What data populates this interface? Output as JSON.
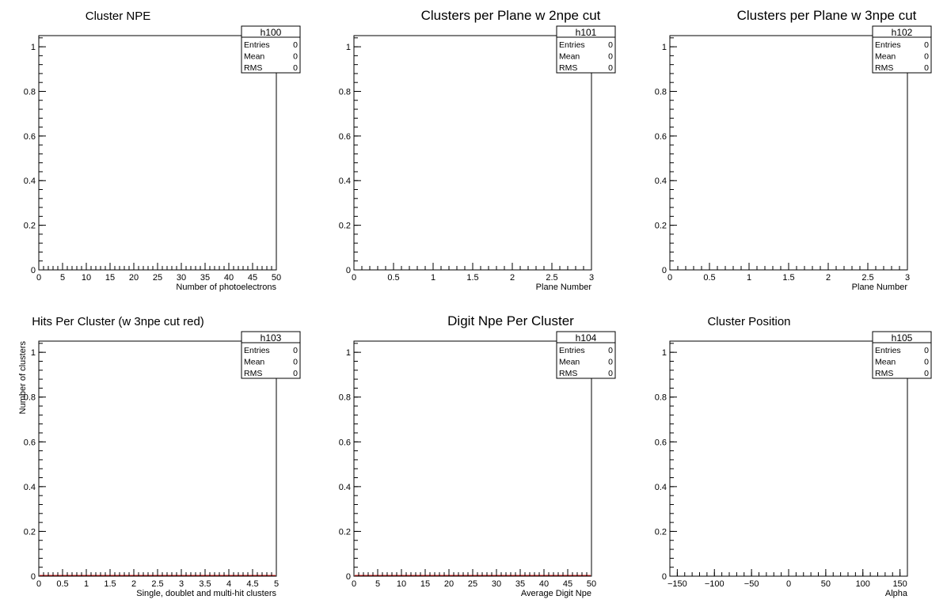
{
  "chart_data": [
    {
      "type": "bar",
      "histogram": "h100",
      "title": "Cluster NPE",
      "xlabel": "Number of photoelectrons",
      "ylabel": "",
      "xlim": [
        0,
        50
      ],
      "ylim": [
        0,
        1.05
      ],
      "xticks": [
        "0",
        "5",
        "10",
        "15",
        "20",
        "25",
        "30",
        "35",
        "40",
        "45",
        "50"
      ],
      "yticks": [
        "0",
        "0.2",
        "0.4",
        "0.6",
        "0.8",
        "1"
      ],
      "stats": {
        "name": "h100",
        "rows": [
          {
            "label": "Entries",
            "value": "0"
          },
          {
            "label": "Mean",
            "value": "0"
          },
          {
            "label": "RMS",
            "value": "0"
          }
        ]
      },
      "values": []
    },
    {
      "type": "bar",
      "histogram": "h101",
      "title": "Clusters per Plane w 2npe cut",
      "xlabel": "Plane Number",
      "ylabel": "",
      "xlim": [
        0,
        3
      ],
      "ylim": [
        0,
        1.05
      ],
      "xticks": [
        "0",
        "0.5",
        "1",
        "1.5",
        "2",
        "2.5",
        "3"
      ],
      "yticks": [
        "0",
        "0.2",
        "0.4",
        "0.6",
        "0.8",
        "1"
      ],
      "stats": {
        "name": "h101",
        "rows": [
          {
            "label": "Entries",
            "value": "0"
          },
          {
            "label": "Mean",
            "value": "0"
          },
          {
            "label": "RMS",
            "value": "0"
          }
        ]
      },
      "values": []
    },
    {
      "type": "bar",
      "histogram": "h102",
      "title": "Clusters per Plane w 3npe cut",
      "xlabel": "Plane Number",
      "ylabel": "",
      "xlim": [
        0,
        3
      ],
      "ylim": [
        0,
        1.05
      ],
      "xticks": [
        "0",
        "0.5",
        "1",
        "1.5",
        "2",
        "2.5",
        "3"
      ],
      "yticks": [
        "0",
        "0.2",
        "0.4",
        "0.6",
        "0.8",
        "1"
      ],
      "stats": {
        "name": "h102",
        "rows": [
          {
            "label": "Entries",
            "value": "0"
          },
          {
            "label": "Mean",
            "value": "0"
          },
          {
            "label": "RMS",
            "value": "0"
          }
        ]
      },
      "values": []
    },
    {
      "type": "bar",
      "histogram": "h103",
      "title": "Hits Per Cluster (w 3npe cut red)",
      "xlabel": "Single, doublet and multi-hit clusters",
      "ylabel": "Number of clusters",
      "xlim": [
        0,
        5
      ],
      "ylim": [
        0,
        1.05
      ],
      "xticks": [
        "0",
        "0.5",
        "1",
        "1.5",
        "2",
        "2.5",
        "3",
        "3.5",
        "4",
        "4.5",
        "5"
      ],
      "yticks": [
        "0",
        "0.2",
        "0.4",
        "0.6",
        "0.8",
        "1"
      ],
      "stats": {
        "name": "h103",
        "rows": [
          {
            "label": "Entries",
            "value": "0"
          },
          {
            "label": "Mean",
            "value": "0"
          },
          {
            "label": "RMS",
            "value": "0"
          }
        ]
      },
      "series_color": "#e02020",
      "values": []
    },
    {
      "type": "bar",
      "histogram": "h104",
      "title": "Digit Npe Per Cluster",
      "xlabel": "Average Digit Npe",
      "ylabel": "",
      "xlim": [
        0,
        50
      ],
      "ylim": [
        0,
        1.05
      ],
      "xticks": [
        "0",
        "5",
        "10",
        "15",
        "20",
        "25",
        "30",
        "35",
        "40",
        "45",
        "50"
      ],
      "yticks": [
        "0",
        "0.2",
        "0.4",
        "0.6",
        "0.8",
        "1"
      ],
      "stats": {
        "name": "h104",
        "rows": [
          {
            "label": "Entries",
            "value": "0"
          },
          {
            "label": "Mean",
            "value": "0"
          },
          {
            "label": "RMS",
            "value": "0"
          }
        ]
      },
      "series_color": "#e02020",
      "values": []
    },
    {
      "type": "bar",
      "histogram": "h105",
      "title": "Cluster Position",
      "xlabel": "Alpha",
      "ylabel": "",
      "xlim": [
        -160,
        160
      ],
      "ylim": [
        0,
        1.05
      ],
      "xticks": [
        "−150",
        "−100",
        "−50",
        "0",
        "50",
        "100",
        "150"
      ],
      "yticks": [
        "0",
        "0.2",
        "0.4",
        "0.6",
        "0.8",
        "1"
      ],
      "stats": {
        "name": "h105",
        "rows": [
          {
            "label": "Entries",
            "value": "0"
          },
          {
            "label": "Mean",
            "value": "0"
          },
          {
            "label": "RMS",
            "value": "0"
          }
        ]
      },
      "values": []
    }
  ]
}
